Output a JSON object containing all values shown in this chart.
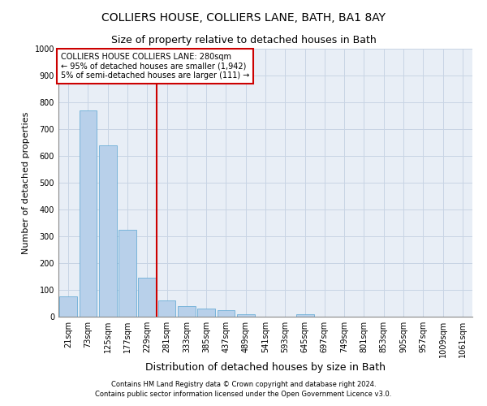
{
  "title1": "COLLIERS HOUSE, COLLIERS LANE, BATH, BA1 8AY",
  "title2": "Size of property relative to detached houses in Bath",
  "xlabel": "Distribution of detached houses by size in Bath",
  "ylabel": "Number of detached properties",
  "footer1": "Contains HM Land Registry data © Crown copyright and database right 2024.",
  "footer2": "Contains public sector information licensed under the Open Government Licence v3.0.",
  "categories": [
    "21sqm",
    "73sqm",
    "125sqm",
    "177sqm",
    "229sqm",
    "281sqm",
    "333sqm",
    "385sqm",
    "437sqm",
    "489sqm",
    "541sqm",
    "593sqm",
    "645sqm",
    "697sqm",
    "749sqm",
    "801sqm",
    "853sqm",
    "905sqm",
    "957sqm",
    "1009sqm",
    "1061sqm"
  ],
  "bar_values": [
    75,
    770,
    640,
    325,
    145,
    60,
    38,
    30,
    25,
    10,
    0,
    0,
    8,
    0,
    0,
    0,
    0,
    0,
    0,
    0,
    0
  ],
  "bar_color": "#b8d0ea",
  "bar_edge_color": "#6baed6",
  "grid_color": "#c8d4e4",
  "background_color": "#e8eef6",
  "vline_x_index": 5,
  "vline_color": "#cc0000",
  "annotation_text": "COLLIERS HOUSE COLLIERS LANE: 280sqm\n← 95% of detached houses are smaller (1,942)\n5% of semi-detached houses are larger (111) →",
  "annotation_box_color": "#ffffff",
  "annotation_box_edge": "#cc0000",
  "ylim": [
    0,
    1000
  ],
  "yticks": [
    0,
    100,
    200,
    300,
    400,
    500,
    600,
    700,
    800,
    900,
    1000
  ],
  "title1_fontsize": 10,
  "title2_fontsize": 9,
  "xlabel_fontsize": 9,
  "ylabel_fontsize": 8,
  "annot_fontsize": 7,
  "footer_fontsize": 6,
  "tick_fontsize": 7
}
